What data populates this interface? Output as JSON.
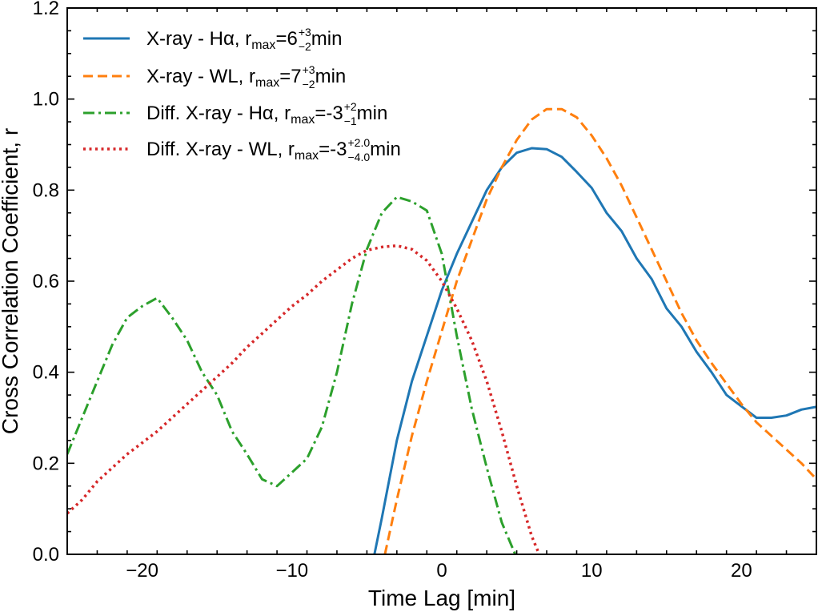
{
  "chart_data": {
    "type": "line",
    "title": "",
    "xlabel": "Time Lag [min]",
    "ylabel": "Cross Correlation Coefficient, r",
    "xlim": [
      -25,
      25
    ],
    "ylim": [
      0.0,
      1.2
    ],
    "x_ticks": [
      -20,
      -10,
      0,
      10,
      20
    ],
    "x_tick_labels": [
      "−20",
      "−10",
      "0",
      "10",
      "20"
    ],
    "y_ticks": [
      0.0,
      0.2,
      0.4,
      0.6,
      0.8,
      1.0,
      1.2
    ],
    "y_tick_labels": [
      "0.0",
      "0.2",
      "0.4",
      "0.6",
      "0.8",
      "1.0",
      "1.2"
    ],
    "grid": false,
    "legend_position": "top-left",
    "series": [
      {
        "name": "X-ray - Hα",
        "legend": {
          "prefix": "X-ray - Hα, r",
          "sub": "max",
          "mid": "=6",
          "sup": "+3",
          "low": "−2",
          "suffix": " min"
        },
        "color": "#1f77b4",
        "style": "solid",
        "x": [
          -4.5,
          -4,
          -3,
          -2,
          -1,
          0,
          1,
          2,
          3,
          4,
          5,
          6,
          7,
          8,
          9,
          10,
          11,
          12,
          13,
          14,
          15,
          16,
          17,
          18,
          19,
          20,
          21,
          22,
          23,
          24,
          25
        ],
        "y": [
          0.0,
          0.08,
          0.25,
          0.38,
          0.48,
          0.58,
          0.66,
          0.73,
          0.8,
          0.85,
          0.882,
          0.892,
          0.89,
          0.873,
          0.84,
          0.805,
          0.75,
          0.71,
          0.65,
          0.605,
          0.54,
          0.5,
          0.445,
          0.4,
          0.35,
          0.325,
          0.3,
          0.3,
          0.305,
          0.318,
          0.324
        ]
      },
      {
        "name": "X-ray - WL",
        "legend": {
          "prefix": "X-ray - WL, r",
          "sub": "max",
          "mid": "=7",
          "sup": "+3",
          "low": "−2",
          "suffix": " min"
        },
        "color": "#ff7f0e",
        "style": "dashed",
        "x": [
          -3.8,
          -3,
          -2,
          -1,
          0,
          1,
          2,
          3,
          4,
          5,
          6,
          7,
          8,
          9,
          10,
          11,
          12,
          13,
          14,
          15,
          16,
          17,
          18,
          19,
          20,
          21,
          22,
          23,
          24,
          25
        ],
        "y": [
          0.0,
          0.12,
          0.26,
          0.38,
          0.49,
          0.6,
          0.69,
          0.78,
          0.85,
          0.91,
          0.955,
          0.978,
          0.978,
          0.96,
          0.92,
          0.87,
          0.81,
          0.74,
          0.67,
          0.6,
          0.53,
          0.47,
          0.42,
          0.375,
          0.33,
          0.29,
          0.26,
          0.23,
          0.2,
          0.165
        ]
      },
      {
        "name": "Diff. X-ray - Hα",
        "legend": {
          "prefix": "Diff. X-ray - Hα, r",
          "sub": "max",
          "mid": "=-3",
          "sup": "+2",
          "low": "−1",
          "suffix": " min"
        },
        "color": "#2ca02c",
        "style": "dashdot",
        "x": [
          -25,
          -24,
          -23,
          -22,
          -21,
          -20,
          -19,
          -18,
          -17,
          -16,
          -15,
          -14,
          -13,
          -12,
          -11,
          -10,
          -9,
          -8,
          -7,
          -6,
          -5,
          -4,
          -3,
          -2,
          -1,
          0,
          1,
          2,
          3,
          4,
          4.9
        ],
        "y": [
          0.22,
          0.3,
          0.38,
          0.46,
          0.52,
          0.545,
          0.563,
          0.52,
          0.47,
          0.4,
          0.35,
          0.27,
          0.22,
          0.165,
          0.15,
          0.18,
          0.21,
          0.28,
          0.4,
          0.55,
          0.67,
          0.75,
          0.785,
          0.775,
          0.755,
          0.66,
          0.48,
          0.32,
          0.19,
          0.07,
          0.0
        ]
      },
      {
        "name": "Diff. X-ray - WL",
        "legend": {
          "prefix": "Diff. X-ray - WL, r",
          "sub": "max",
          "mid": "=-3",
          "sup": "+2.0",
          "low": "−4.0",
          "suffix": " min"
        },
        "color": "#d62728",
        "style": "dotted",
        "x": [
          -25,
          -24,
          -23,
          -22,
          -21,
          -20,
          -19,
          -18,
          -17,
          -16,
          -15,
          -14,
          -13,
          -12,
          -11,
          -10,
          -9,
          -8,
          -7,
          -6,
          -5,
          -4,
          -3,
          -2,
          -1,
          0,
          1,
          2,
          3,
          4,
          5,
          6,
          6.5
        ],
        "y": [
          0.09,
          0.12,
          0.16,
          0.19,
          0.22,
          0.245,
          0.27,
          0.3,
          0.33,
          0.36,
          0.39,
          0.42,
          0.455,
          0.485,
          0.515,
          0.545,
          0.57,
          0.6,
          0.625,
          0.65,
          0.668,
          0.675,
          0.678,
          0.67,
          0.645,
          0.6,
          0.54,
          0.47,
          0.38,
          0.27,
          0.15,
          0.04,
          0.0
        ]
      }
    ]
  }
}
